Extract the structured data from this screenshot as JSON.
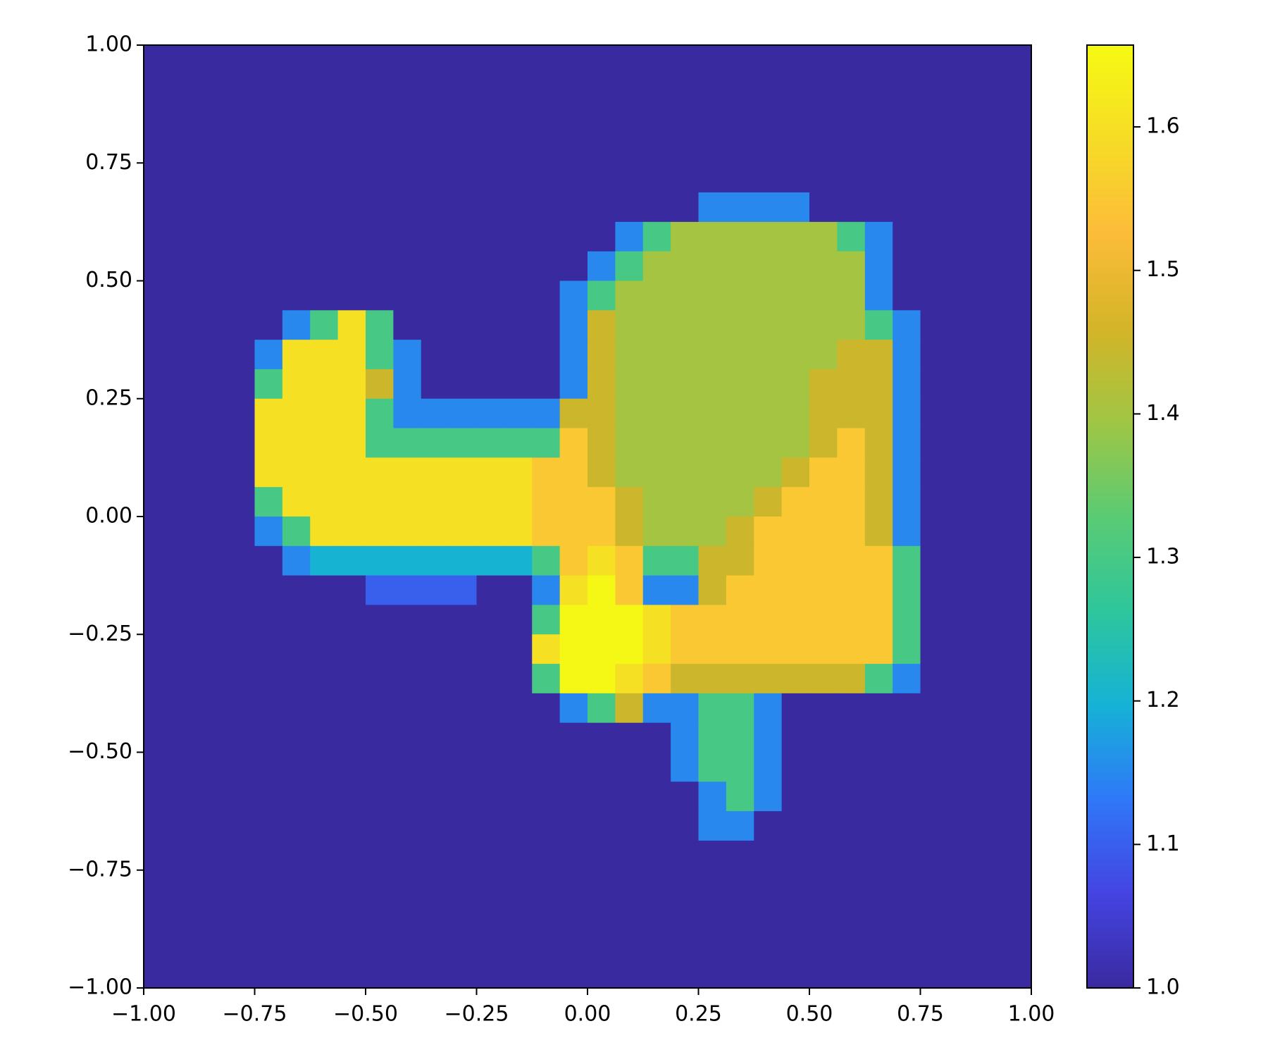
{
  "chart_data": {
    "type": "heatmap",
    "xlim": [
      -1,
      1
    ],
    "ylim": [
      -1,
      1
    ],
    "xticks": [
      {
        "value": -1,
        "label": "−1.00"
      },
      {
        "value": -0.75,
        "label": "−0.75"
      },
      {
        "value": -0.5,
        "label": "−0.50"
      },
      {
        "value": -0.25,
        "label": "−0.25"
      },
      {
        "value": 0,
        "label": "0.00"
      },
      {
        "value": 0.25,
        "label": "0.25"
      },
      {
        "value": 0.5,
        "label": "0.50"
      },
      {
        "value": 0.75,
        "label": "0.75"
      },
      {
        "value": 1,
        "label": "1.00"
      }
    ],
    "yticks": [
      {
        "value": -1,
        "label": "−1.00"
      },
      {
        "value": -0.75,
        "label": "−0.75"
      },
      {
        "value": -0.5,
        "label": "−0.50"
      },
      {
        "value": -0.25,
        "label": "−0.25"
      },
      {
        "value": 0,
        "label": "0.00"
      },
      {
        "value": 0.25,
        "label": "0.25"
      },
      {
        "value": 0.5,
        "label": "0.50"
      },
      {
        "value": 0.75,
        "label": "0.75"
      },
      {
        "value": 1,
        "label": "1.00"
      }
    ],
    "clim": [
      1,
      1.657
    ],
    "colorbar_ticks": [
      {
        "value": 1,
        "label": "1.0"
      },
      1.1,
      1.2,
      1.3,
      1.4,
      1.5,
      1.6
    ],
    "colormap": [
      "#3a2aa0",
      "#4444e2",
      "#2f78f8",
      "#16b2d6",
      "#2ec69c",
      "#5acb74",
      "#a0c644",
      "#d4b428",
      "#fcbc3a",
      "#f6dc26",
      "#f5fa12"
    ],
    "values": [
      [
        1,
        1,
        1,
        1,
        1,
        1,
        1,
        1,
        1,
        1,
        1,
        1,
        1,
        1,
        1,
        1,
        1,
        1,
        1,
        1,
        1,
        1,
        1,
        1,
        1,
        1,
        1,
        1,
        1,
        1,
        1,
        1
      ],
      [
        1,
        1,
        1,
        1,
        1,
        1,
        1,
        1,
        1,
        1,
        1,
        1,
        1,
        1,
        1,
        1,
        1,
        1,
        1,
        1,
        1,
        1,
        1,
        1,
        1,
        1,
        1,
        1,
        1,
        1,
        1,
        1
      ],
      [
        1,
        1,
        1,
        1,
        1,
        1,
        1,
        1,
        1,
        1,
        1,
        1,
        1,
        1,
        1,
        1,
        1,
        1,
        1,
        1,
        1,
        1,
        1,
        1,
        1,
        1,
        1,
        1,
        1,
        1,
        1,
        1
      ],
      [
        1,
        1,
        1,
        1,
        1,
        1,
        1,
        1,
        1,
        1,
        1,
        1,
        1,
        1,
        1,
        1,
        1,
        1,
        1,
        1,
        1,
        1,
        1,
        1,
        1,
        1,
        1,
        1,
        1,
        1,
        1,
        1
      ],
      [
        1,
        1,
        1,
        1,
        1,
        1,
        1,
        1,
        1,
        1,
        1,
        1,
        1,
        1,
        1,
        1,
        1,
        1,
        1,
        1,
        1,
        1,
        1,
        1,
        1,
        1,
        1,
        1,
        1,
        1,
        1,
        1
      ],
      [
        1,
        1,
        1,
        1,
        1,
        1,
        1,
        1,
        1,
        1,
        1,
        1,
        1,
        1,
        1,
        1,
        1,
        1,
        1,
        1,
        1.15,
        1.15,
        1.15,
        1.15,
        1,
        1,
        1,
        1,
        1,
        1,
        1,
        1
      ],
      [
        1,
        1,
        1,
        1,
        1,
        1,
        1,
        1,
        1,
        1,
        1,
        1,
        1,
        1,
        1,
        1,
        1,
        1.15,
        1.3,
        1.4,
        1.4,
        1.4,
        1.4,
        1.4,
        1.4,
        1.3,
        1.15,
        1,
        1,
        1,
        1,
        1
      ],
      [
        1,
        1,
        1,
        1,
        1,
        1,
        1,
        1,
        1,
        1,
        1,
        1,
        1,
        1,
        1,
        1,
        1.15,
        1.3,
        1.4,
        1.4,
        1.4,
        1.4,
        1.4,
        1.4,
        1.4,
        1.4,
        1.15,
        1,
        1,
        1,
        1,
        1
      ],
      [
        1,
        1,
        1,
        1,
        1,
        1,
        1,
        1,
        1,
        1,
        1,
        1,
        1,
        1,
        1,
        1.15,
        1.3,
        1.4,
        1.4,
        1.4,
        1.4,
        1.4,
        1.4,
        1.4,
        1.4,
        1.4,
        1.15,
        1,
        1,
        1,
        1,
        1
      ],
      [
        1,
        1,
        1,
        1,
        1,
        1.15,
        1.3,
        1.6,
        1.3,
        1,
        1,
        1,
        1,
        1,
        1,
        1.15,
        1.45,
        1.4,
        1.4,
        1.4,
        1.4,
        1.4,
        1.4,
        1.4,
        1.4,
        1.4,
        1.3,
        1.15,
        1,
        1,
        1,
        1
      ],
      [
        1,
        1,
        1,
        1,
        1.15,
        1.6,
        1.6,
        1.6,
        1.3,
        1.15,
        1,
        1,
        1,
        1,
        1,
        1.15,
        1.45,
        1.4,
        1.4,
        1.4,
        1.4,
        1.4,
        1.4,
        1.4,
        1.4,
        1.45,
        1.45,
        1.15,
        1,
        1,
        1,
        1
      ],
      [
        1,
        1,
        1,
        1,
        1.3,
        1.6,
        1.6,
        1.6,
        1.45,
        1.15,
        1,
        1,
        1,
        1,
        1,
        1.15,
        1.45,
        1.4,
        1.4,
        1.4,
        1.4,
        1.4,
        1.4,
        1.4,
        1.45,
        1.45,
        1.45,
        1.15,
        1,
        1,
        1,
        1
      ],
      [
        1,
        1,
        1,
        1,
        1.6,
        1.6,
        1.6,
        1.6,
        1.3,
        1.15,
        1.15,
        1.15,
        1.15,
        1.15,
        1.15,
        1.45,
        1.45,
        1.4,
        1.4,
        1.4,
        1.4,
        1.4,
        1.4,
        1.4,
        1.45,
        1.45,
        1.45,
        1.15,
        1,
        1,
        1,
        1
      ],
      [
        1,
        1,
        1,
        1,
        1.6,
        1.6,
        1.6,
        1.6,
        1.3,
        1.3,
        1.3,
        1.3,
        1.3,
        1.3,
        1.3,
        1.55,
        1.45,
        1.4,
        1.4,
        1.4,
        1.4,
        1.4,
        1.4,
        1.4,
        1.45,
        1.55,
        1.45,
        1.15,
        1,
        1,
        1,
        1
      ],
      [
        1,
        1,
        1,
        1,
        1.6,
        1.6,
        1.6,
        1.6,
        1.6,
        1.6,
        1.6,
        1.6,
        1.6,
        1.6,
        1.55,
        1.55,
        1.45,
        1.4,
        1.4,
        1.4,
        1.4,
        1.4,
        1.4,
        1.45,
        1.55,
        1.55,
        1.45,
        1.15,
        1,
        1,
        1,
        1
      ],
      [
        1,
        1,
        1,
        1,
        1.3,
        1.6,
        1.6,
        1.6,
        1.6,
        1.6,
        1.6,
        1.6,
        1.6,
        1.6,
        1.55,
        1.55,
        1.55,
        1.45,
        1.4,
        1.4,
        1.4,
        1.4,
        1.45,
        1.55,
        1.55,
        1.55,
        1.45,
        1.15,
        1,
        1,
        1,
        1
      ],
      [
        1,
        1,
        1,
        1,
        1.15,
        1.3,
        1.6,
        1.6,
        1.6,
        1.6,
        1.6,
        1.6,
        1.6,
        1.6,
        1.55,
        1.55,
        1.55,
        1.45,
        1.4,
        1.4,
        1.4,
        1.45,
        1.55,
        1.55,
        1.55,
        1.55,
        1.45,
        1.15,
        1,
        1,
        1,
        1
      ],
      [
        1,
        1,
        1,
        1,
        1,
        1.15,
        1.2,
        1.2,
        1.2,
        1.2,
        1.2,
        1.2,
        1.2,
        1.2,
        1.3,
        1.55,
        1.6,
        1.55,
        1.3,
        1.3,
        1.45,
        1.45,
        1.55,
        1.55,
        1.55,
        1.55,
        1.55,
        1.3,
        1,
        1,
        1,
        1
      ],
      [
        1,
        1,
        1,
        1,
        1,
        1,
        1,
        1,
        1.1,
        1.1,
        1.1,
        1.1,
        1,
        1,
        1.15,
        1.6,
        1.65,
        1.55,
        1.15,
        1.15,
        1.45,
        1.55,
        1.55,
        1.55,
        1.55,
        1.55,
        1.55,
        1.3,
        1,
        1,
        1,
        1
      ],
      [
        1,
        1,
        1,
        1,
        1,
        1,
        1,
        1,
        1,
        1,
        1,
        1,
        1,
        1,
        1.3,
        1.65,
        1.65,
        1.65,
        1.6,
        1.55,
        1.55,
        1.55,
        1.55,
        1.55,
        1.55,
        1.55,
        1.55,
        1.3,
        1,
        1,
        1,
        1
      ],
      [
        1,
        1,
        1,
        1,
        1,
        1,
        1,
        1,
        1,
        1,
        1,
        1,
        1,
        1,
        1.6,
        1.65,
        1.65,
        1.65,
        1.6,
        1.55,
        1.55,
        1.55,
        1.55,
        1.55,
        1.55,
        1.55,
        1.55,
        1.3,
        1,
        1,
        1,
        1
      ],
      [
        1,
        1,
        1,
        1,
        1,
        1,
        1,
        1,
        1,
        1,
        1,
        1,
        1,
        1,
        1.3,
        1.65,
        1.65,
        1.6,
        1.55,
        1.45,
        1.45,
        1.45,
        1.45,
        1.45,
        1.45,
        1.45,
        1.3,
        1.15,
        1,
        1,
        1,
        1
      ],
      [
        1,
        1,
        1,
        1,
        1,
        1,
        1,
        1,
        1,
        1,
        1,
        1,
        1,
        1,
        1,
        1.15,
        1.3,
        1.45,
        1.15,
        1.15,
        1.3,
        1.3,
        1.15,
        1,
        1,
        1,
        1,
        1,
        1,
        1,
        1,
        1
      ],
      [
        1,
        1,
        1,
        1,
        1,
        1,
        1,
        1,
        1,
        1,
        1,
        1,
        1,
        1,
        1,
        1,
        1,
        1,
        1,
        1.15,
        1.3,
        1.3,
        1.15,
        1,
        1,
        1,
        1,
        1,
        1,
        1,
        1,
        1
      ],
      [
        1,
        1,
        1,
        1,
        1,
        1,
        1,
        1,
        1,
        1,
        1,
        1,
        1,
        1,
        1,
        1,
        1,
        1,
        1,
        1.15,
        1.3,
        1.3,
        1.15,
        1,
        1,
        1,
        1,
        1,
        1,
        1,
        1,
        1
      ],
      [
        1,
        1,
        1,
        1,
        1,
        1,
        1,
        1,
        1,
        1,
        1,
        1,
        1,
        1,
        1,
        1,
        1,
        1,
        1,
        1,
        1.15,
        1.3,
        1.15,
        1,
        1,
        1,
        1,
        1,
        1,
        1,
        1,
        1
      ],
      [
        1,
        1,
        1,
        1,
        1,
        1,
        1,
        1,
        1,
        1,
        1,
        1,
        1,
        1,
        1,
        1,
        1,
        1,
        1,
        1,
        1.15,
        1.15,
        1,
        1,
        1,
        1,
        1,
        1,
        1,
        1,
        1,
        1
      ],
      [
        1,
        1,
        1,
        1,
        1,
        1,
        1,
        1,
        1,
        1,
        1,
        1,
        1,
        1,
        1,
        1,
        1,
        1,
        1,
        1,
        1,
        1,
        1,
        1,
        1,
        1,
        1,
        1,
        1,
        1,
        1,
        1
      ],
      [
        1,
        1,
        1,
        1,
        1,
        1,
        1,
        1,
        1,
        1,
        1,
        1,
        1,
        1,
        1,
        1,
        1,
        1,
        1,
        1,
        1,
        1,
        1,
        1,
        1,
        1,
        1,
        1,
        1,
        1,
        1,
        1
      ],
      [
        1,
        1,
        1,
        1,
        1,
        1,
        1,
        1,
        1,
        1,
        1,
        1,
        1,
        1,
        1,
        1,
        1,
        1,
        1,
        1,
        1,
        1,
        1,
        1,
        1,
        1,
        1,
        1,
        1,
        1,
        1,
        1
      ],
      [
        1,
        1,
        1,
        1,
        1,
        1,
        1,
        1,
        1,
        1,
        1,
        1,
        1,
        1,
        1,
        1,
        1,
        1,
        1,
        1,
        1,
        1,
        1,
        1,
        1,
        1,
        1,
        1,
        1,
        1,
        1,
        1
      ],
      [
        1,
        1,
        1,
        1,
        1,
        1,
        1,
        1,
        1,
        1,
        1,
        1,
        1,
        1,
        1,
        1,
        1,
        1,
        1,
        1,
        1,
        1,
        1,
        1,
        1,
        1,
        1,
        1,
        1,
        1,
        1,
        1
      ]
    ]
  }
}
